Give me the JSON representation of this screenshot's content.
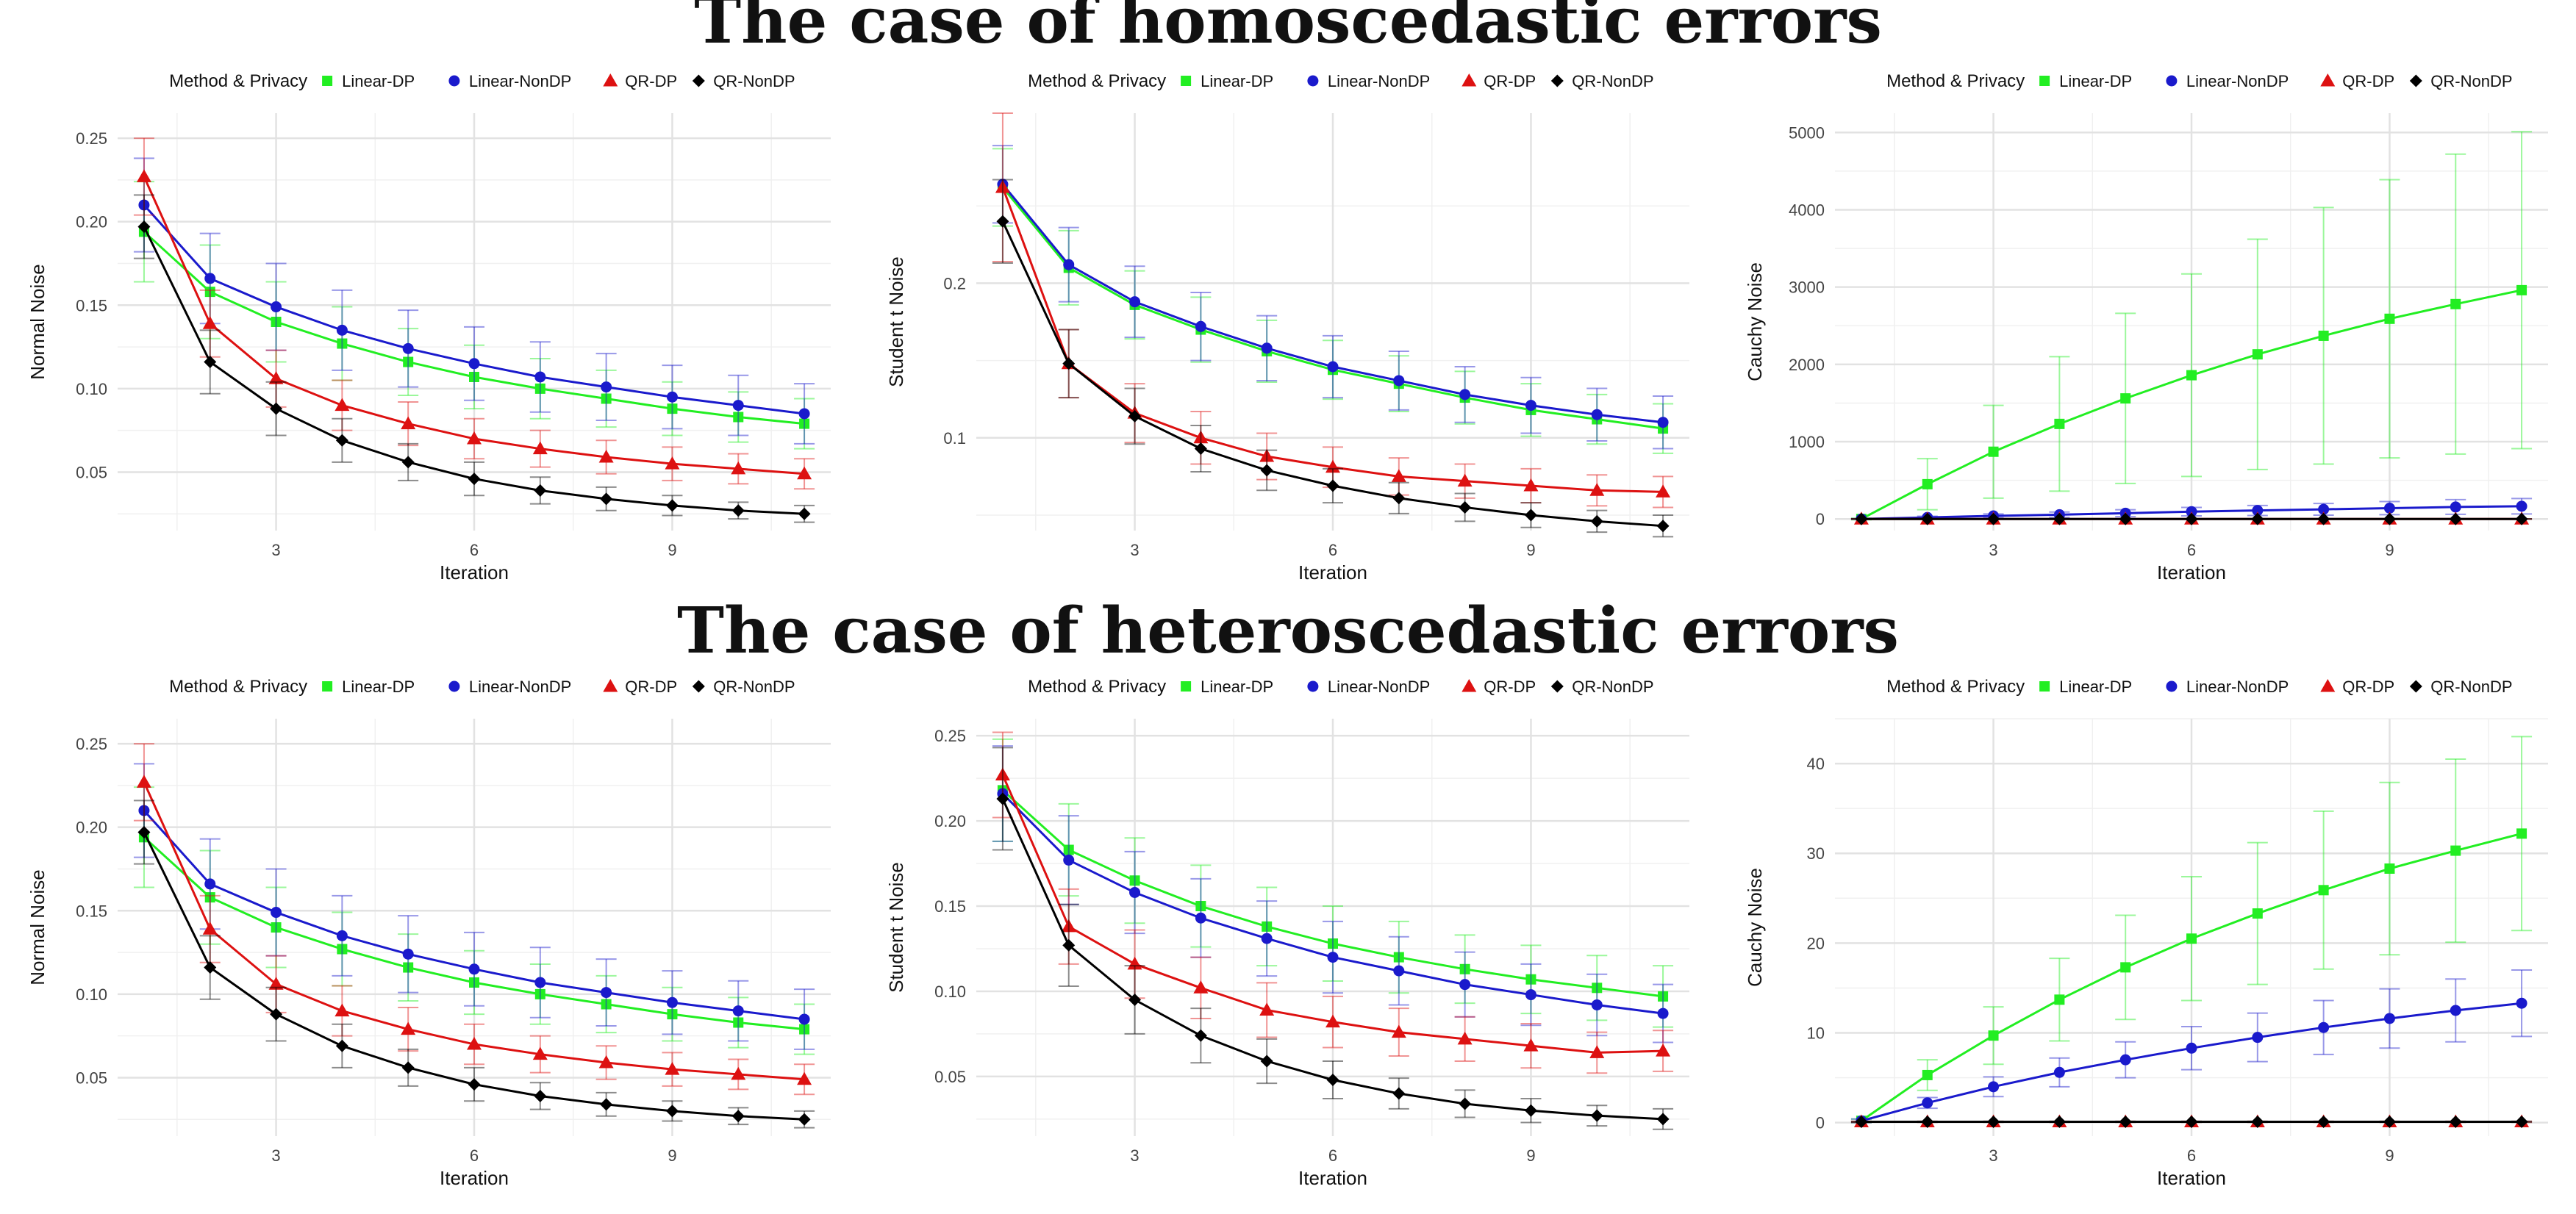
{
  "sections": [
    {
      "title": "The case of homoscedastic errors"
    },
    {
      "title": "The case of heteroscedastic errors"
    }
  ],
  "legend": {
    "title": "Method & Privacy",
    "entries": [
      "Linear-DP",
      "Linear-NonDP",
      "QR-DP",
      "QR-NonDP"
    ]
  },
  "colors": {
    "Linear-DP": "#22ee22",
    "Linear-NonDP": "#1a1acc",
    "QR-DP": "#dd1111",
    "QR-NonDP": "#000000",
    "error_bar_alpha": 0.45
  },
  "chart_data": [
    {
      "type": "line",
      "section": 0,
      "xlabel": "Iteration",
      "ylabel": "Normal Noise",
      "x": [
        1,
        2,
        3,
        4,
        5,
        6,
        7,
        8,
        9,
        10,
        11
      ],
      "xlim": [
        0.6,
        11.4
      ],
      "xticks": [
        3,
        6,
        9
      ],
      "ylim": [
        0.015,
        0.265
      ],
      "yticks": [
        0.05,
        0.1,
        0.15,
        0.2,
        0.25
      ],
      "ytick_labels": [
        "0.05",
        "0.10",
        "0.15",
        "0.20",
        "0.25"
      ],
      "grid": true,
      "legend_position": "top",
      "series": [
        {
          "name": "Linear-DP",
          "marker": "square",
          "values": [
            0.194,
            0.158,
            0.14,
            0.127,
            0.116,
            0.107,
            0.1,
            0.094,
            0.088,
            0.083,
            0.079
          ],
          "errors": [
            0.03,
            0.028,
            0.024,
            0.022,
            0.02,
            0.019,
            0.018,
            0.017,
            0.016,
            0.015,
            0.015
          ]
        },
        {
          "name": "Linear-NonDP",
          "marker": "circle",
          "values": [
            0.21,
            0.166,
            0.149,
            0.135,
            0.124,
            0.115,
            0.107,
            0.101,
            0.095,
            0.09,
            0.085
          ],
          "errors": [
            0.028,
            0.027,
            0.026,
            0.024,
            0.023,
            0.022,
            0.021,
            0.02,
            0.019,
            0.018,
            0.018
          ]
        },
        {
          "name": "QR-DP",
          "marker": "triangle",
          "values": [
            0.227,
            0.139,
            0.106,
            0.09,
            0.079,
            0.07,
            0.064,
            0.059,
            0.055,
            0.052,
            0.049
          ],
          "errors": [
            0.023,
            0.02,
            0.017,
            0.015,
            0.013,
            0.012,
            0.011,
            0.01,
            0.01,
            0.009,
            0.009
          ]
        },
        {
          "name": "QR-NonDP",
          "marker": "diamond",
          "values": [
            0.197,
            0.116,
            0.088,
            0.069,
            0.056,
            0.046,
            0.039,
            0.034,
            0.03,
            0.027,
            0.025
          ],
          "errors": [
            0.019,
            0.019,
            0.016,
            0.013,
            0.011,
            0.01,
            0.008,
            0.007,
            0.006,
            0.005,
            0.005
          ]
        }
      ]
    },
    {
      "type": "line",
      "section": 0,
      "xlabel": "Iteration",
      "ylabel": "Student t Noise",
      "x": [
        1,
        2,
        3,
        4,
        5,
        6,
        7,
        8,
        9,
        10,
        11
      ],
      "xlim": [
        0.6,
        11.4
      ],
      "xticks": [
        3,
        6,
        9
      ],
      "ylim": [
        0.04,
        0.31
      ],
      "yticks": [
        0.1,
        0.2
      ],
      "ytick_labels": [
        "0.1",
        "0.2"
      ],
      "grid": true,
      "legend_position": "top",
      "series": [
        {
          "name": "Linear-DP",
          "marker": "square",
          "values": [
            0.262,
            0.21,
            0.186,
            0.17,
            0.156,
            0.144,
            0.135,
            0.126,
            0.118,
            0.112,
            0.106
          ],
          "errors": [
            0.025,
            0.024,
            0.022,
            0.021,
            0.02,
            0.019,
            0.018,
            0.017,
            0.017,
            0.016,
            0.016
          ]
        },
        {
          "name": "Linear-NonDP",
          "marker": "circle",
          "values": [
            0.264,
            0.212,
            0.188,
            0.172,
            0.158,
            0.146,
            0.137,
            0.128,
            0.121,
            0.115,
            0.11
          ],
          "errors": [
            0.025,
            0.024,
            0.023,
            0.022,
            0.021,
            0.02,
            0.019,
            0.018,
            0.018,
            0.017,
            0.017
          ]
        },
        {
          "name": "QR-DP",
          "marker": "triangle",
          "values": [
            0.262,
            0.148,
            0.116,
            0.1,
            0.088,
            0.081,
            0.075,
            0.072,
            0.069,
            0.066,
            0.065
          ],
          "errors": [
            0.048,
            0.022,
            0.019,
            0.017,
            0.015,
            0.013,
            0.012,
            0.011,
            0.011,
            0.01,
            0.01
          ]
        },
        {
          "name": "QR-NonDP",
          "marker": "diamond",
          "values": [
            0.24,
            0.148,
            0.114,
            0.093,
            0.079,
            0.069,
            0.061,
            0.055,
            0.05,
            0.046,
            0.043
          ],
          "errors": [
            0.027,
            0.022,
            0.018,
            0.015,
            0.013,
            0.011,
            0.01,
            0.009,
            0.008,
            0.007,
            0.007
          ]
        }
      ]
    },
    {
      "type": "line",
      "section": 0,
      "xlabel": "Iteration",
      "ylabel": "Cauchy Noise",
      "x": [
        1,
        2,
        3,
        4,
        5,
        6,
        7,
        8,
        9,
        10,
        11
      ],
      "xlim": [
        0.6,
        11.4
      ],
      "xticks": [
        3,
        6,
        9
      ],
      "ylim": [
        -150,
        5250
      ],
      "yticks": [
        0,
        1000,
        2000,
        3000,
        4000,
        5000
      ],
      "ytick_labels": [
        "0",
        "1000",
        "2000",
        "3000",
        "4000",
        "5000"
      ],
      "grid": true,
      "legend_position": "top",
      "series": [
        {
          "name": "Linear-DP",
          "marker": "square",
          "values": [
            0,
            450,
            870,
            1230,
            1560,
            1860,
            2130,
            2370,
            2590,
            2780,
            2960
          ],
          "errors": [
            10,
            330,
            600,
            870,
            1100,
            1310,
            1490,
            1660,
            1800,
            1940,
            2050
          ]
        },
        {
          "name": "Linear-NonDP",
          "marker": "circle",
          "values": [
            0,
            20,
            40,
            55,
            75,
            95,
            110,
            125,
            140,
            155,
            165
          ],
          "errors": [
            5,
            15,
            25,
            35,
            45,
            55,
            65,
            75,
            85,
            95,
            100
          ]
        },
        {
          "name": "QR-DP",
          "marker": "triangle",
          "values": [
            0,
            0,
            0,
            0,
            0,
            0,
            0,
            0,
            0,
            0,
            0
          ],
          "errors": [
            2,
            2,
            2,
            2,
            2,
            2,
            2,
            2,
            2,
            2,
            2
          ]
        },
        {
          "name": "QR-NonDP",
          "marker": "diamond",
          "values": [
            0,
            0,
            0,
            0,
            0,
            0,
            0,
            0,
            0,
            0,
            0
          ],
          "errors": [
            2,
            2,
            2,
            2,
            2,
            2,
            2,
            2,
            2,
            2,
            2
          ]
        }
      ]
    },
    {
      "type": "line",
      "section": 1,
      "xlabel": "Iteration",
      "ylabel": "Normal Noise",
      "x": [
        1,
        2,
        3,
        4,
        5,
        6,
        7,
        8,
        9,
        10,
        11
      ],
      "xlim": [
        0.6,
        11.4
      ],
      "xticks": [
        3,
        6,
        9
      ],
      "ylim": [
        0.015,
        0.265
      ],
      "yticks": [
        0.05,
        0.1,
        0.15,
        0.2,
        0.25
      ],
      "ytick_labels": [
        "0.05",
        "0.10",
        "0.15",
        "0.20",
        "0.25"
      ],
      "grid": true,
      "legend_position": "top",
      "series": [
        {
          "name": "Linear-DP",
          "marker": "square",
          "values": [
            0.194,
            0.158,
            0.14,
            0.127,
            0.116,
            0.107,
            0.1,
            0.094,
            0.088,
            0.083,
            0.079
          ],
          "errors": [
            0.03,
            0.028,
            0.024,
            0.022,
            0.02,
            0.019,
            0.018,
            0.017,
            0.016,
            0.015,
            0.015
          ]
        },
        {
          "name": "Linear-NonDP",
          "marker": "circle",
          "values": [
            0.21,
            0.166,
            0.149,
            0.135,
            0.124,
            0.115,
            0.107,
            0.101,
            0.095,
            0.09,
            0.085
          ],
          "errors": [
            0.028,
            0.027,
            0.026,
            0.024,
            0.023,
            0.022,
            0.021,
            0.02,
            0.019,
            0.018,
            0.018
          ]
        },
        {
          "name": "QR-DP",
          "marker": "triangle",
          "values": [
            0.227,
            0.139,
            0.106,
            0.09,
            0.079,
            0.07,
            0.064,
            0.059,
            0.055,
            0.052,
            0.049
          ],
          "errors": [
            0.023,
            0.02,
            0.017,
            0.015,
            0.013,
            0.012,
            0.011,
            0.01,
            0.01,
            0.009,
            0.009
          ]
        },
        {
          "name": "QR-NonDP",
          "marker": "diamond",
          "values": [
            0.197,
            0.116,
            0.088,
            0.069,
            0.056,
            0.046,
            0.039,
            0.034,
            0.03,
            0.027,
            0.025
          ],
          "errors": [
            0.019,
            0.019,
            0.016,
            0.013,
            0.011,
            0.01,
            0.008,
            0.007,
            0.006,
            0.005,
            0.005
          ]
        }
      ]
    },
    {
      "type": "line",
      "section": 1,
      "xlabel": "Iteration",
      "ylabel": "Student t Noise",
      "x": [
        1,
        2,
        3,
        4,
        5,
        6,
        7,
        8,
        9,
        10,
        11
      ],
      "xlim": [
        0.6,
        11.4
      ],
      "xticks": [
        3,
        6,
        9
      ],
      "ylim": [
        0.015,
        0.26
      ],
      "yticks": [
        0.05,
        0.1,
        0.15,
        0.2,
        0.25
      ],
      "ytick_labels": [
        "0.05",
        "0.10",
        "0.15",
        "0.20",
        "0.25"
      ],
      "grid": true,
      "legend_position": "top",
      "series": [
        {
          "name": "Linear-DP",
          "marker": "square",
          "values": [
            0.218,
            0.183,
            0.165,
            0.15,
            0.138,
            0.128,
            0.12,
            0.113,
            0.107,
            0.102,
            0.097
          ],
          "errors": [
            0.03,
            0.027,
            0.025,
            0.024,
            0.023,
            0.022,
            0.021,
            0.02,
            0.02,
            0.019,
            0.018
          ]
        },
        {
          "name": "Linear-NonDP",
          "marker": "circle",
          "values": [
            0.216,
            0.177,
            0.158,
            0.143,
            0.131,
            0.12,
            0.112,
            0.104,
            0.098,
            0.092,
            0.087
          ],
          "errors": [
            0.028,
            0.026,
            0.024,
            0.023,
            0.022,
            0.021,
            0.02,
            0.019,
            0.018,
            0.018,
            0.017
          ]
        },
        {
          "name": "QR-DP",
          "marker": "triangle",
          "values": [
            0.227,
            0.138,
            0.116,
            0.102,
            0.089,
            0.082,
            0.076,
            0.072,
            0.068,
            0.064,
            0.065
          ],
          "errors": [
            0.025,
            0.022,
            0.02,
            0.018,
            0.016,
            0.015,
            0.014,
            0.013,
            0.013,
            0.012,
            0.012
          ]
        },
        {
          "name": "QR-NonDP",
          "marker": "diamond",
          "values": [
            0.213,
            0.127,
            0.095,
            0.074,
            0.059,
            0.048,
            0.04,
            0.034,
            0.03,
            0.027,
            0.025
          ],
          "errors": [
            0.03,
            0.024,
            0.02,
            0.016,
            0.013,
            0.011,
            0.009,
            0.008,
            0.007,
            0.006,
            0.006
          ]
        }
      ]
    },
    {
      "type": "line",
      "section": 1,
      "xlabel": "Iteration",
      "ylabel": "Cauchy Noise",
      "x": [
        1,
        2,
        3,
        4,
        5,
        6,
        7,
        8,
        9,
        10,
        11
      ],
      "xlim": [
        0.6,
        11.4
      ],
      "xticks": [
        3,
        6,
        9
      ],
      "ylim": [
        -1.5,
        45
      ],
      "yticks": [
        0,
        10,
        20,
        30,
        40
      ],
      "ytick_labels": [
        "0",
        "10",
        "20",
        "30",
        "40"
      ],
      "grid": true,
      "legend_position": "top",
      "series": [
        {
          "name": "Linear-DP",
          "marker": "square",
          "values": [
            0.2,
            5.3,
            9.7,
            13.7,
            17.3,
            20.5,
            23.3,
            25.9,
            28.3,
            30.3,
            32.2
          ],
          "errors": [
            0.2,
            1.7,
            3.2,
            4.6,
            5.8,
            6.9,
            7.9,
            8.8,
            9.6,
            10.2,
            10.8
          ]
        },
        {
          "name": "Linear-NonDP",
          "marker": "circle",
          "values": [
            0.2,
            2.2,
            4.0,
            5.6,
            7.0,
            8.3,
            9.5,
            10.6,
            11.6,
            12.5,
            13.3
          ],
          "errors": [
            0.2,
            0.6,
            1.1,
            1.6,
            2.0,
            2.4,
            2.7,
            3.0,
            3.3,
            3.5,
            3.7
          ]
        },
        {
          "name": "QR-DP",
          "marker": "triangle",
          "values": [
            0.1,
            0.1,
            0.1,
            0.1,
            0.1,
            0.1,
            0.1,
            0.1,
            0.1,
            0.1,
            0.1
          ],
          "errors": [
            0.05,
            0.05,
            0.05,
            0.05,
            0.05,
            0.05,
            0.05,
            0.05,
            0.05,
            0.05,
            0.05
          ]
        },
        {
          "name": "QR-NonDP",
          "marker": "diamond",
          "values": [
            0.1,
            0.1,
            0.1,
            0.1,
            0.1,
            0.1,
            0.1,
            0.1,
            0.1,
            0.1,
            0.1
          ],
          "errors": [
            0.05,
            0.05,
            0.05,
            0.05,
            0.05,
            0.05,
            0.05,
            0.05,
            0.05,
            0.05,
            0.05
          ]
        }
      ]
    }
  ]
}
